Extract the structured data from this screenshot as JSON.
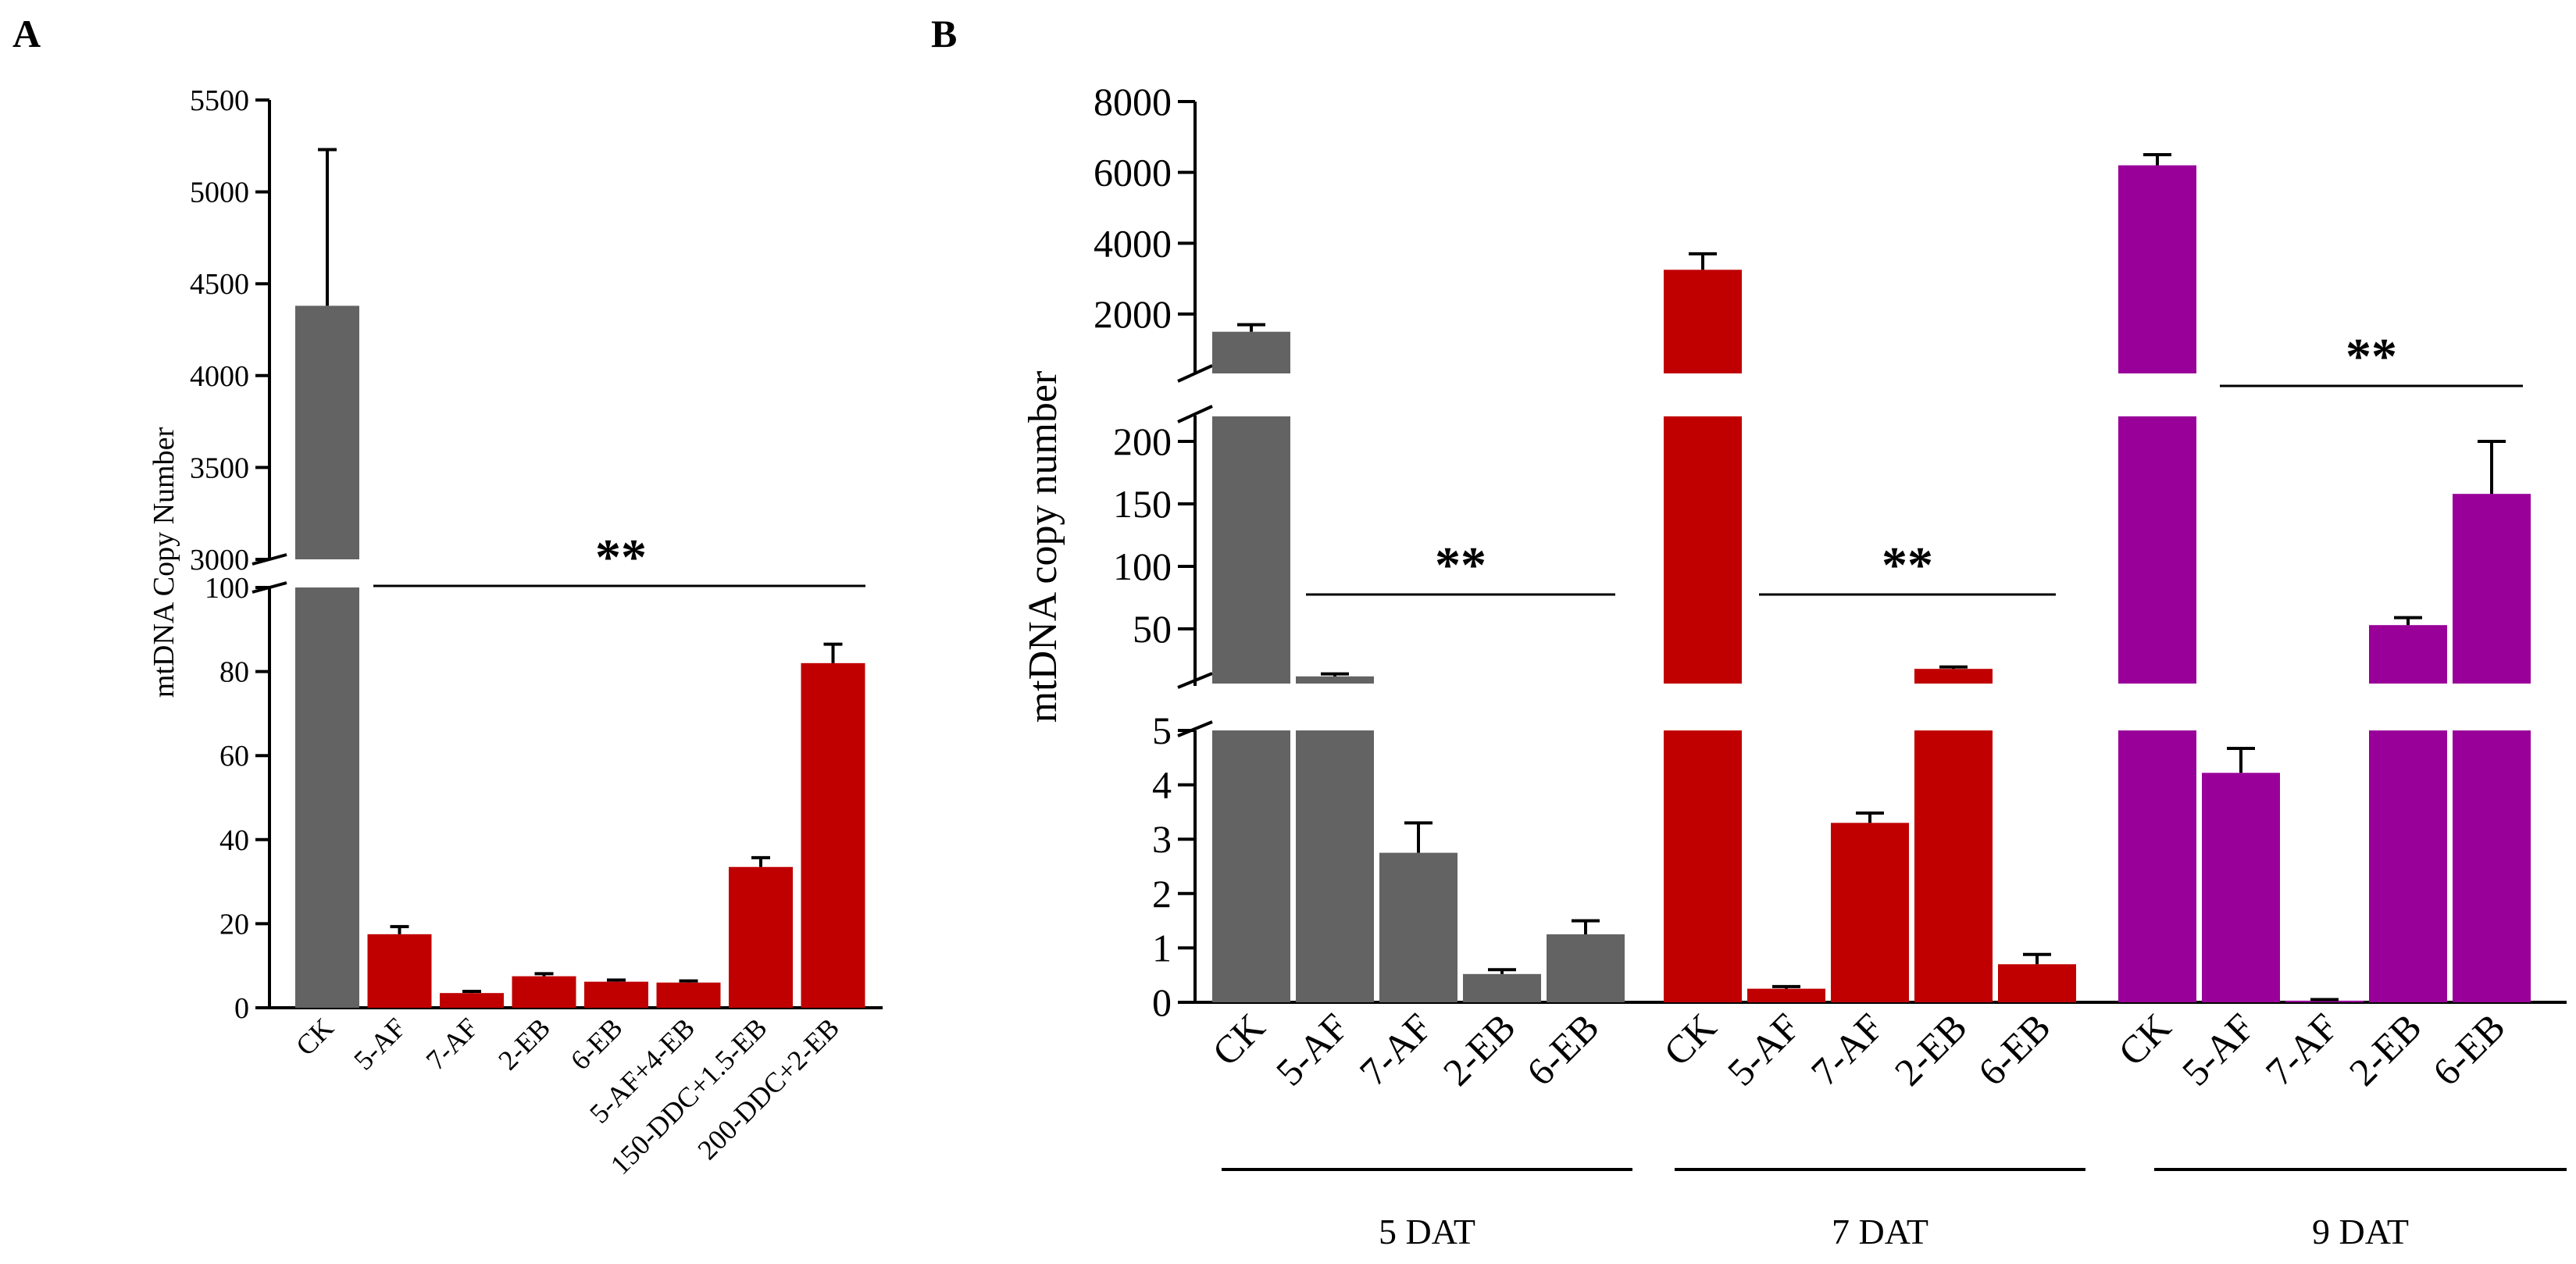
{
  "panels": {
    "A": {
      "letter": "A"
    },
    "B": {
      "letter": "B"
    }
  },
  "chart_data": [
    {
      "type": "bar",
      "panel": "A",
      "title": "",
      "xlabel": "",
      "ylabel": "mtDNA Copy Number",
      "categories": [
        "CK",
        "5-AF",
        "7-AF",
        "2-EB",
        "6-EB",
        "5-AF+4-EB",
        "150-DDC+1.5-EB",
        "200-DDC+2-EB"
      ],
      "values": [
        4380,
        17.5,
        3.5,
        7.5,
        6.2,
        6.0,
        33.5,
        82
      ],
      "errors": [
        850,
        1.8,
        0.4,
        0.6,
        0.4,
        0.4,
        2.2,
        4.5
      ],
      "bar_colors": [
        "#636363",
        "#c00000",
        "#c00000",
        "#c00000",
        "#c00000",
        "#c00000",
        "#c00000",
        "#c00000"
      ],
      "axis_break": {
        "lower_range": [
          0,
          100
        ],
        "upper_range": [
          3000,
          5500
        ]
      },
      "lower_ticks": [
        0,
        20,
        40,
        60,
        80,
        100
      ],
      "upper_ticks": [
        3000,
        3500,
        4000,
        4500,
        5000,
        5500
      ],
      "significance": "**"
    },
    {
      "type": "bar",
      "panel": "B",
      "title": "",
      "xlabel": "",
      "ylabel": "mtDNA copy number",
      "groups": [
        {
          "label": "5 DAT",
          "color": "#636363",
          "categories": [
            "CK",
            "5-AF",
            "7-AF",
            "2-EB",
            "6-EB"
          ],
          "values": [
            1500,
            12,
            2.75,
            0.52,
            1.25
          ],
          "errors": [
            200,
            2,
            0.55,
            0.08,
            0.25
          ],
          "significance": "**"
        },
        {
          "label": "7 DAT",
          "color": "#c00000",
          "categories": [
            "CK",
            "5-AF",
            "7-AF",
            "2-EB",
            "6-EB"
          ],
          "values": [
            3250,
            0.25,
            3.3,
            18,
            0.7
          ],
          "errors": [
            450,
            0.04,
            0.18,
            1.5,
            0.18
          ],
          "significance": "**"
        },
        {
          "label": "9 DAT",
          "color": "#990099",
          "categories": [
            "CK",
            "5-AF",
            "7-AF",
            "2-EB",
            "6-EB"
          ],
          "values": [
            6200,
            4.22,
            0.03,
            53,
            158
          ],
          "errors": [
            300,
            0.45,
            0.02,
            6,
            42
          ],
          "significance": "**"
        }
      ],
      "axis_break": {
        "low_range": [
          0,
          5
        ],
        "mid_range": [
          0,
          220
        ],
        "high_range": [
          0,
          8000
        ]
      },
      "low_ticks": [
        0,
        1,
        2,
        3,
        4,
        5
      ],
      "mid_ticks": [
        50,
        100,
        150,
        200
      ],
      "high_ticks": [
        2000,
        4000,
        6000,
        8000
      ]
    }
  ]
}
